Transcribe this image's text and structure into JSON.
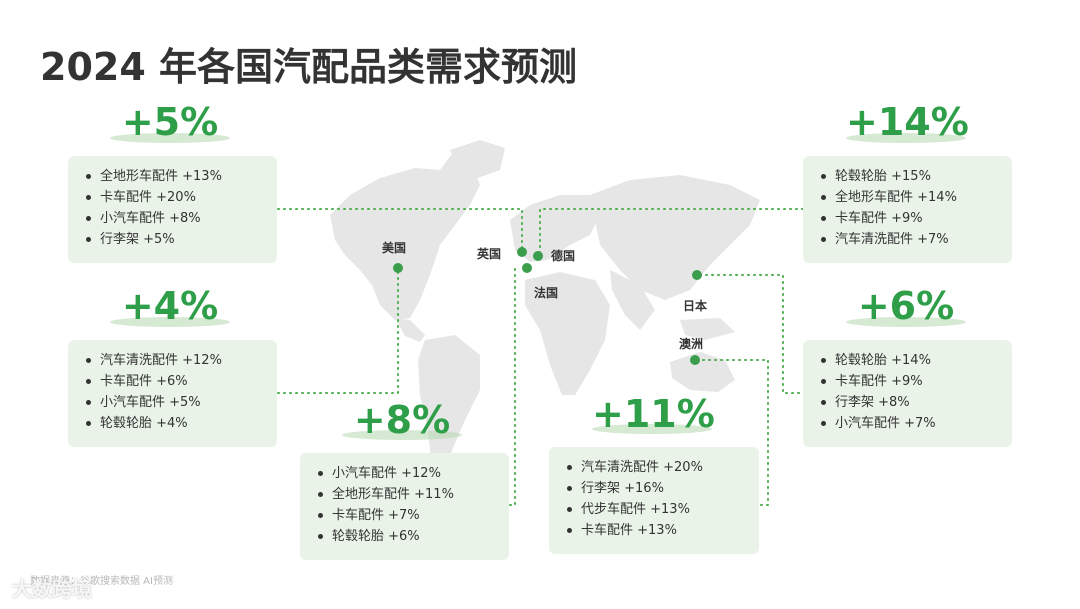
{
  "title": "2024 年各国汽配品类需求预测",
  "accent_color": "#2e9e48",
  "card_bg": "#e9f3e8",
  "countries": {
    "usa": "美国",
    "uk": "英国",
    "germany": "德国",
    "france": "法国",
    "japan": "日本",
    "australia": "澳洲"
  },
  "cards": [
    {
      "id": "usa",
      "pct": "+5%",
      "items": [
        "全地形车配件 +13%",
        "卡车配件 +20%",
        "小汽车配件 +8%",
        "行李架 +5%"
      ]
    },
    {
      "id": "left2",
      "pct": "+4%",
      "items": [
        "汽车清洗配件 +12%",
        "卡车配件 +6%",
        "小汽车配件 +5%",
        "轮毂轮胎 +4%"
      ]
    },
    {
      "id": "europe",
      "pct": "+8%",
      "items": [
        "小汽车配件 +12%",
        "全地形车配件 +11%",
        "卡车配件 +7%",
        "轮毂轮胎 +6%"
      ]
    },
    {
      "id": "australia",
      "pct": "+11%",
      "items": [
        "汽车清洗配件 +20%",
        "行李架 +16%",
        "代步车配件 +13%",
        "卡车配件 +13%"
      ]
    },
    {
      "id": "uk",
      "pct": "+14%",
      "items": [
        "轮毂轮胎 +15%",
        "全地形车配件 +14%",
        "卡车配件 +9%",
        "汽车清洗配件 +7%"
      ]
    },
    {
      "id": "japan",
      "pct": "+6%",
      "items": [
        "轮毂轮胎 +14%",
        "卡车配件 +9%",
        "行李架 +8%",
        "小汽车配件 +7%"
      ]
    }
  ],
  "source": "数据来源：谷歌搜索数据 AI预测",
  "watermark": "大数跨境"
}
